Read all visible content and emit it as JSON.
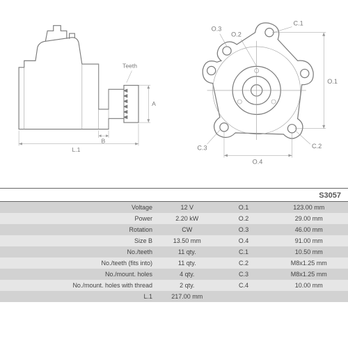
{
  "part_number": "S3057",
  "diagram_labels": {
    "teeth": "Teeth",
    "L1": "L.1",
    "B": "B",
    "A": "A",
    "O1": "O.1",
    "O2": "O.2",
    "O3": "O.3",
    "O4": "O.4",
    "C1": "C.1",
    "C2": "C.2",
    "C3": "C.3"
  },
  "specs": [
    {
      "label": "Voltage",
      "value": "12 V",
      "label2": "O.1",
      "value2": "123.00 mm"
    },
    {
      "label": "Power",
      "value": "2.20 kW",
      "label2": "O.2",
      "value2": "29.00 mm"
    },
    {
      "label": "Rotation",
      "value": "CW",
      "label2": "O.3",
      "value2": "46.00 mm"
    },
    {
      "label": "Size B",
      "value": "13.50 mm",
      "label2": "O.4",
      "value2": "91.00 mm"
    },
    {
      "label": "No./teeth",
      "value": "11 qty.",
      "label2": "C.1",
      "value2": "10.50 mm"
    },
    {
      "label": "No./teeth (fits into)",
      "value": "11 qty.",
      "label2": "C.2",
      "value2": "M8x1.25 mm"
    },
    {
      "label": "No./mount. holes",
      "value": "4 qty.",
      "label2": "C.3",
      "value2": "M8x1.25 mm"
    },
    {
      "label": "No./mount. holes with thread",
      "value": "2 qty.",
      "label2": "C.4",
      "value2": "10.00 mm"
    },
    {
      "label": "L.1",
      "value": "217.00 mm",
      "label2": "",
      "value2": ""
    }
  ],
  "style": {
    "row_odd_bg": "#d2d2d2",
    "row_even_bg": "#e6e6e6",
    "outline_color": "#7a7a7a",
    "text_color": "#444444",
    "font_size_table": 9,
    "font_size_label": 9
  }
}
